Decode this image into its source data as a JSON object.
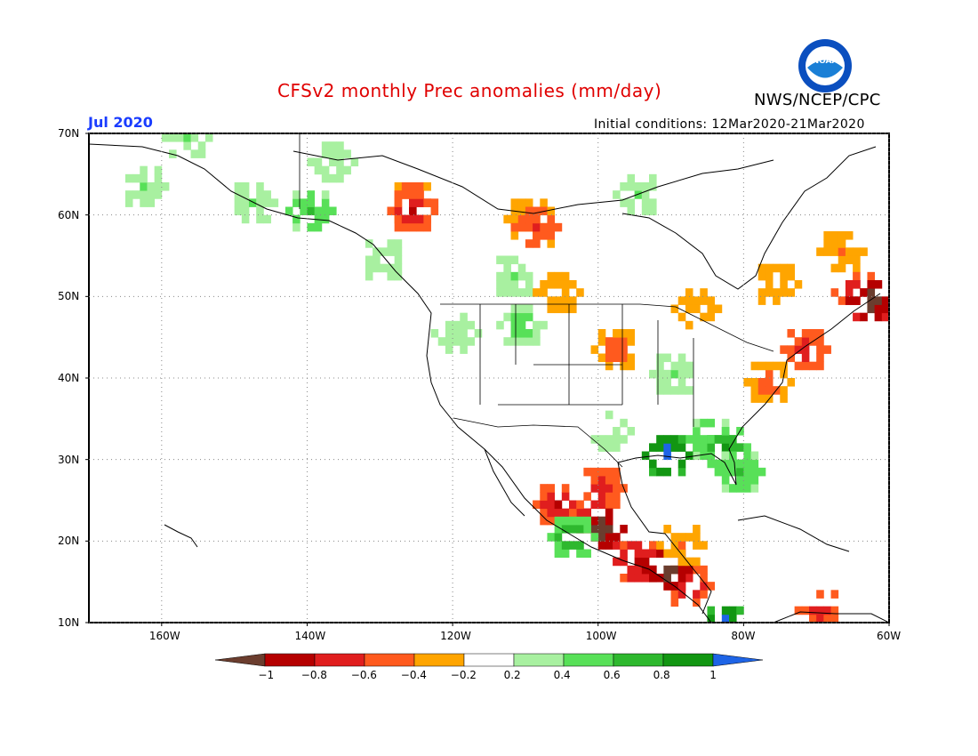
{
  "header": {
    "title": "CFSv2 monthly Prec anomalies (mm/day)",
    "agency": "NWS/NCEP/CPC",
    "month": "Jul 2020",
    "initial_conditions": "Initial conditions: 12Mar2020-21Mar2020",
    "logo_text": "NOAA"
  },
  "map": {
    "lat_labels": [
      "70N",
      "60N",
      "50N",
      "40N",
      "30N",
      "20N",
      "10N"
    ],
    "lon_labels": [
      "160W",
      "140W",
      "120W",
      "100W",
      "80W",
      "60W"
    ],
    "lat_range": [
      10,
      70
    ],
    "lon_range": [
      -170,
      -60
    ]
  },
  "colorbar": {
    "labels": [
      "-1",
      "-0.8",
      "-0.6",
      "-0.4",
      "-0.2",
      "0.2",
      "0.4",
      "0.6",
      "0.8",
      "1"
    ],
    "colors": [
      "#6b3d2e",
      "#b50000",
      "#e01e1e",
      "#ff5a1e",
      "#ffa500",
      "#ffffff",
      "#a8f0a0",
      "#58e058",
      "#2eb82e",
      "#129612",
      "#1e64e6"
    ]
  },
  "anomaly_regions": [
    {
      "name": "Alaska north",
      "lon": -157,
      "lat": 69,
      "value": 0.4
    },
    {
      "name": "Alaska west",
      "lon": -163,
      "lat": 63,
      "value": 0.4
    },
    {
      "name": "Alaska south",
      "lon": -148,
      "lat": 61,
      "value": 0.4
    },
    {
      "name": "Alaska coast",
      "lon": -140,
      "lat": 60,
      "value": 0.6
    },
    {
      "name": "Yukon",
      "lon": -137,
      "lat": 66,
      "value": 0.3
    },
    {
      "name": "BC coast",
      "lon": -130,
      "lat": 54,
      "value": 0.4
    },
    {
      "name": "NW Canada",
      "lon": -126,
      "lat": 61,
      "value": -0.6
    },
    {
      "name": "NW Canada core",
      "lon": -126,
      "lat": 60,
      "value": -0.8
    },
    {
      "name": "Central Canada",
      "lon": -110,
      "lat": 59,
      "value": -0.4
    },
    {
      "name": "Central Canada core",
      "lon": -109,
      "lat": 58,
      "value": -0.6
    },
    {
      "name": "Hudson west",
      "lon": -95,
      "lat": 62,
      "value": 0.4
    },
    {
      "name": "Alberta",
      "lon": -112,
      "lat": 52,
      "value": 0.4
    },
    {
      "name": "Saskatchewan",
      "lon": -106,
      "lat": 50,
      "value": -0.4
    },
    {
      "name": "Montana",
      "lon": -111,
      "lat": 46,
      "value": 0.5
    },
    {
      "name": "Pacific NW",
      "lon": -120,
      "lat": 45,
      "value": 0.3
    },
    {
      "name": "Great Lakes",
      "lon": -87,
      "lat": 48,
      "value": -0.3
    },
    {
      "name": "Quebec",
      "lon": -76,
      "lat": 51,
      "value": -0.4
    },
    {
      "name": "Labrador",
      "lon": -67,
      "lat": 55,
      "value": -0.4
    },
    {
      "name": "Maritimes",
      "lon": -65,
      "lat": 50,
      "value": -0.8
    },
    {
      "name": "Maritimes core",
      "lon": -63,
      "lat": 49,
      "value": -1.2
    },
    {
      "name": "New England",
      "lon": -72,
      "lat": 43,
      "value": -0.7
    },
    {
      "name": "Mid Atlantic",
      "lon": -77,
      "lat": 39,
      "value": -0.5
    },
    {
      "name": "Plains",
      "lon": -98,
      "lat": 43,
      "value": -0.5
    },
    {
      "name": "Midwest",
      "lon": -90,
      "lat": 40,
      "value": 0.4
    },
    {
      "name": "Southeast",
      "lon": -85,
      "lat": 32,
      "value": 0.6
    },
    {
      "name": "Southeast core",
      "lon": -83,
      "lat": 31,
      "value": 0.8
    },
    {
      "name": "Louisiana",
      "lon": -91,
      "lat": 30,
      "value": 1.2
    },
    {
      "name": "Florida",
      "lon": -81,
      "lat": 28,
      "value": 0.6
    },
    {
      "name": "Texas",
      "lon": -99,
      "lat": 33,
      "value": 0.3
    },
    {
      "name": "NE Mexico",
      "lon": -100,
      "lat": 26,
      "value": -0.7
    },
    {
      "name": "Central Mexico",
      "lon": -101,
      "lat": 22,
      "value": -0.9
    },
    {
      "name": "West Mexico",
      "lon": -106,
      "lat": 24,
      "value": -0.8
    },
    {
      "name": "Mexico core",
      "lon": -100,
      "lat": 21,
      "value": -1.2
    },
    {
      "name": "South Mexico",
      "lon": -95,
      "lat": 17,
      "value": -0.9
    },
    {
      "name": "Central America",
      "lon": -88,
      "lat": 14,
      "value": -0.8
    },
    {
      "name": "Guatemala",
      "lon": -91,
      "lat": 16,
      "value": -1.2
    },
    {
      "name": "Pacific Mexico",
      "lon": -104,
      "lat": 20,
      "value": 0.8
    },
    {
      "name": "Yucatan",
      "lon": -89,
      "lat": 19,
      "value": -0.4
    },
    {
      "name": "Caribbean",
      "lon": -70,
      "lat": 11,
      "value": -0.7
    },
    {
      "name": "Panama",
      "lon": -83,
      "lat": 9,
      "value": 1.2
    }
  ]
}
